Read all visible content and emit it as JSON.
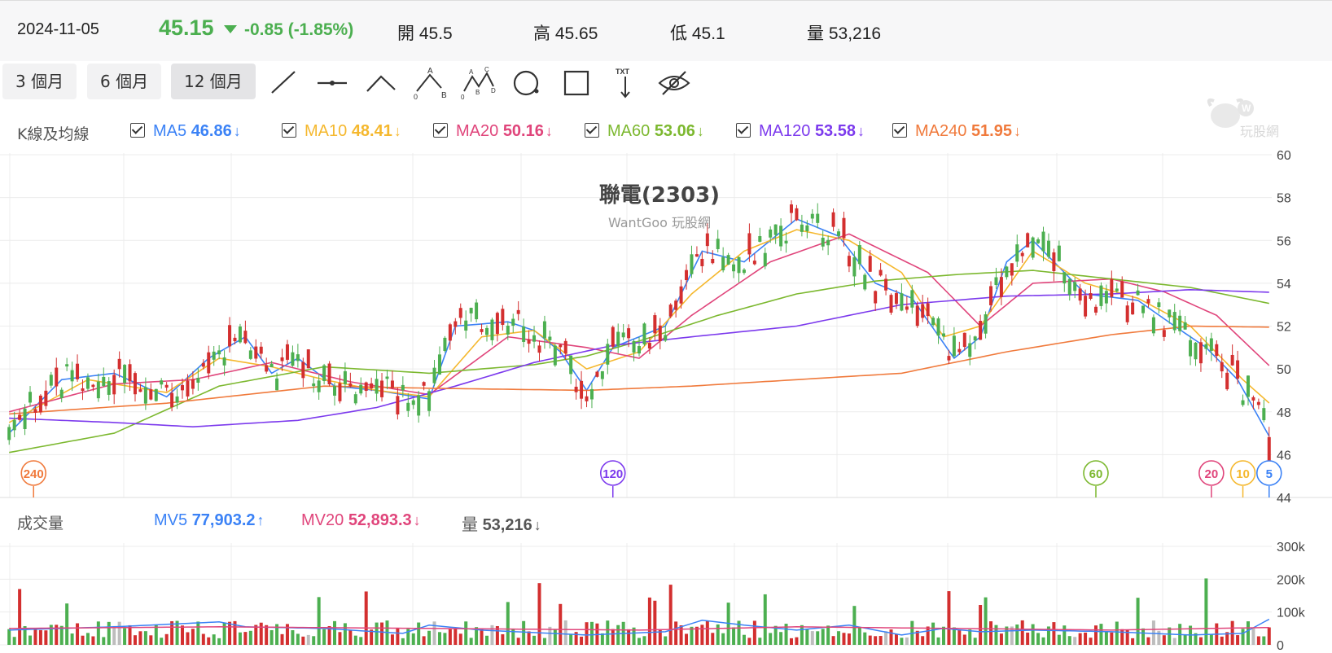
{
  "quote": {
    "date": "2024-11-05",
    "price": "45.15",
    "change": "-0.85 (-1.85%)",
    "open": "開 45.5",
    "high": "高 45.65",
    "low": "低 45.1",
    "volume": "量 53,216"
  },
  "toolbar": {
    "ranges": [
      "3 個月",
      "6 個月",
      "12 個月"
    ],
    "active_range": "12 個月",
    "tools": [
      "line-tool-icon",
      "ray-tool-icon",
      "angle-tool-icon",
      "abc-tool-icon",
      "abcd-tool-icon",
      "circle-tool-icon",
      "rect-tool-icon",
      "text-tool-icon",
      "hide-eye-icon"
    ],
    "text_tool_label": "TXT"
  },
  "ma_legend": {
    "title": "K線及均線",
    "items": [
      {
        "label": "MA5",
        "value": "46.86",
        "arrow": "↓",
        "color": "#3b82f6"
      },
      {
        "label": "MA10",
        "value": "48.41",
        "arrow": "↓",
        "color": "#f5b82e"
      },
      {
        "label": "MA20",
        "value": "50.16",
        "arrow": "↓",
        "color": "#e0457b"
      },
      {
        "label": "MA60",
        "value": "53.06",
        "arrow": "↓",
        "color": "#7cb82f"
      },
      {
        "label": "MA120",
        "value": "53.58",
        "arrow": "↓",
        "color": "#7c3aed"
      },
      {
        "label": "MA240",
        "value": "51.95",
        "arrow": "↓",
        "color": "#f07a3c"
      }
    ]
  },
  "chart_title": "聯電(2303)",
  "chart_subtitle": "WantGoo 玩股網",
  "watermark_text": "玩股網",
  "mv_legend": {
    "title": "成交量",
    "items": [
      {
        "label": "MV5",
        "value": "77,903.2",
        "arrow": "↑",
        "color": "#3b82f6"
      },
      {
        "label": "MV20",
        "value": "52,893.3",
        "arrow": "↓",
        "color": "#e0457b"
      },
      {
        "label": "量",
        "value": "53,216",
        "arrow": "↓",
        "color": "#555555"
      }
    ]
  },
  "colors": {
    "up": "#d32f2f",
    "down": "#4caf50",
    "flat": "#bdbdbd",
    "grid": "#ececec"
  },
  "chart_data": {
    "type": "candlestick",
    "price_axis": {
      "ticks": [
        60,
        58,
        56,
        54,
        52,
        50,
        48,
        46,
        44
      ],
      "ylim": [
        44,
        60
      ]
    },
    "volume_axis": {
      "ticks": [
        "300k",
        "200k",
        "100k",
        "0"
      ],
      "ylim": [
        0,
        300000
      ]
    },
    "ma_badges": [
      "240",
      "120",
      "60",
      "20",
      "10",
      "5"
    ],
    "ma_badge_positions": [
      0,
      115,
      207,
      229,
      235,
      240
    ],
    "ma_anchors": {
      "MA5": [
        [
          0,
          47
        ],
        [
          10,
          49.5
        ],
        [
          20,
          49.8
        ],
        [
          30,
          48.7
        ],
        [
          38,
          50.5
        ],
        [
          45,
          51.5
        ],
        [
          50,
          49.8
        ],
        [
          55,
          50.5
        ],
        [
          62,
          49.2
        ],
        [
          70,
          49
        ],
        [
          80,
          48.6
        ],
        [
          85,
          52
        ],
        [
          95,
          52.2
        ],
        [
          100,
          51.8
        ],
        [
          105,
          50.8
        ],
        [
          110,
          49
        ],
        [
          115,
          51
        ],
        [
          125,
          52
        ],
        [
          132,
          55.5
        ],
        [
          140,
          55
        ],
        [
          150,
          57
        ],
        [
          158,
          56.2
        ],
        [
          165,
          54
        ],
        [
          172,
          53.3
        ],
        [
          180,
          50.5
        ],
        [
          185,
          51.5
        ],
        [
          190,
          55
        ],
        [
          195,
          56
        ],
        [
          205,
          53.5
        ],
        [
          215,
          53.2
        ],
        [
          222,
          52
        ],
        [
          228,
          51
        ],
        [
          234,
          49.5
        ],
        [
          240,
          46.86
        ]
      ],
      "MA10": [
        [
          0,
          47.5
        ],
        [
          15,
          49.5
        ],
        [
          30,
          48.9
        ],
        [
          40,
          50.5
        ],
        [
          50,
          50.1
        ],
        [
          60,
          49.5
        ],
        [
          70,
          49
        ],
        [
          80,
          48.7
        ],
        [
          90,
          51.5
        ],
        [
          100,
          51.8
        ],
        [
          110,
          50
        ],
        [
          120,
          50.8
        ],
        [
          130,
          53.5
        ],
        [
          140,
          55.5
        ],
        [
          150,
          56.5
        ],
        [
          160,
          56
        ],
        [
          170,
          54.5
        ],
        [
          178,
          51.5
        ],
        [
          185,
          52
        ],
        [
          195,
          55.5
        ],
        [
          205,
          54
        ],
        [
          215,
          53.3
        ],
        [
          225,
          52
        ],
        [
          235,
          49.5
        ],
        [
          240,
          48.41
        ]
      ],
      "MA20": [
        [
          0,
          48
        ],
        [
          20,
          49.3
        ],
        [
          35,
          49.5
        ],
        [
          50,
          50.3
        ],
        [
          65,
          49.4
        ],
        [
          80,
          48.8
        ],
        [
          95,
          51.5
        ],
        [
          110,
          51
        ],
        [
          120,
          50.5
        ],
        [
          130,
          52.5
        ],
        [
          145,
          55
        ],
        [
          160,
          56.3
        ],
        [
          175,
          54.5
        ],
        [
          185,
          52
        ],
        [
          195,
          54
        ],
        [
          210,
          54.2
        ],
        [
          220,
          53.6
        ],
        [
          230,
          52.5
        ],
        [
          240,
          50.16
        ]
      ],
      "MA60": [
        [
          0,
          46.1
        ],
        [
          20,
          47
        ],
        [
          40,
          49.2
        ],
        [
          60,
          50.1
        ],
        [
          80,
          49.8
        ],
        [
          100,
          50.2
        ],
        [
          110,
          50.6
        ],
        [
          120,
          51.3
        ],
        [
          135,
          52.5
        ],
        [
          150,
          53.5
        ],
        [
          165,
          54.1
        ],
        [
          180,
          54.4
        ],
        [
          195,
          54.6
        ],
        [
          210,
          54.2
        ],
        [
          225,
          53.8
        ],
        [
          240,
          53.06
        ]
      ],
      "MA120": [
        [
          0,
          47.7
        ],
        [
          20,
          47.5
        ],
        [
          35,
          47.3
        ],
        [
          55,
          47.6
        ],
        [
          70,
          48.2
        ],
        [
          85,
          49.2
        ],
        [
          100,
          50.3
        ],
        [
          115,
          51.1
        ],
        [
          130,
          51.5
        ],
        [
          150,
          52
        ],
        [
          170,
          53
        ],
        [
          190,
          53.4
        ],
        [
          210,
          53.5
        ],
        [
          225,
          53.7
        ],
        [
          240,
          53.58
        ]
      ],
      "MA240": [
        [
          0,
          47.9
        ],
        [
          30,
          48.4
        ],
        [
          60,
          49.2
        ],
        [
          80,
          49.1
        ],
        [
          110,
          49
        ],
        [
          130,
          49.2
        ],
        [
          150,
          49.5
        ],
        [
          170,
          49.8
        ],
        [
          190,
          50.8
        ],
        [
          210,
          51.6
        ],
        [
          225,
          52
        ],
        [
          240,
          51.95
        ]
      ],
      "MV5": [
        [
          0,
          45000
        ],
        [
          20,
          55000
        ],
        [
          40,
          70000
        ],
        [
          45,
          55000
        ],
        [
          60,
          50000
        ],
        [
          75,
          35000
        ],
        [
          80,
          60000
        ],
        [
          90,
          45000
        ],
        [
          110,
          30000
        ],
        [
          125,
          40000
        ],
        [
          132,
          75000
        ],
        [
          140,
          60000
        ],
        [
          150,
          45000
        ],
        [
          160,
          60000
        ],
        [
          170,
          30000
        ],
        [
          178,
          50000
        ],
        [
          185,
          40000
        ],
        [
          195,
          45000
        ],
        [
          210,
          40000
        ],
        [
          225,
          30000
        ],
        [
          235,
          35000
        ],
        [
          240,
          77903
        ]
      ],
      "MV20": [
        [
          0,
          50000
        ],
        [
          40,
          55000
        ],
        [
          80,
          50000
        ],
        [
          120,
          45000
        ],
        [
          150,
          55000
        ],
        [
          180,
          50000
        ],
        [
          210,
          45000
        ],
        [
          240,
          52893
        ]
      ]
    },
    "candles_note": "241 daily candles (2023-11 to 2024-11); open/close generated from the MA5 path, last close 45.15"
  }
}
